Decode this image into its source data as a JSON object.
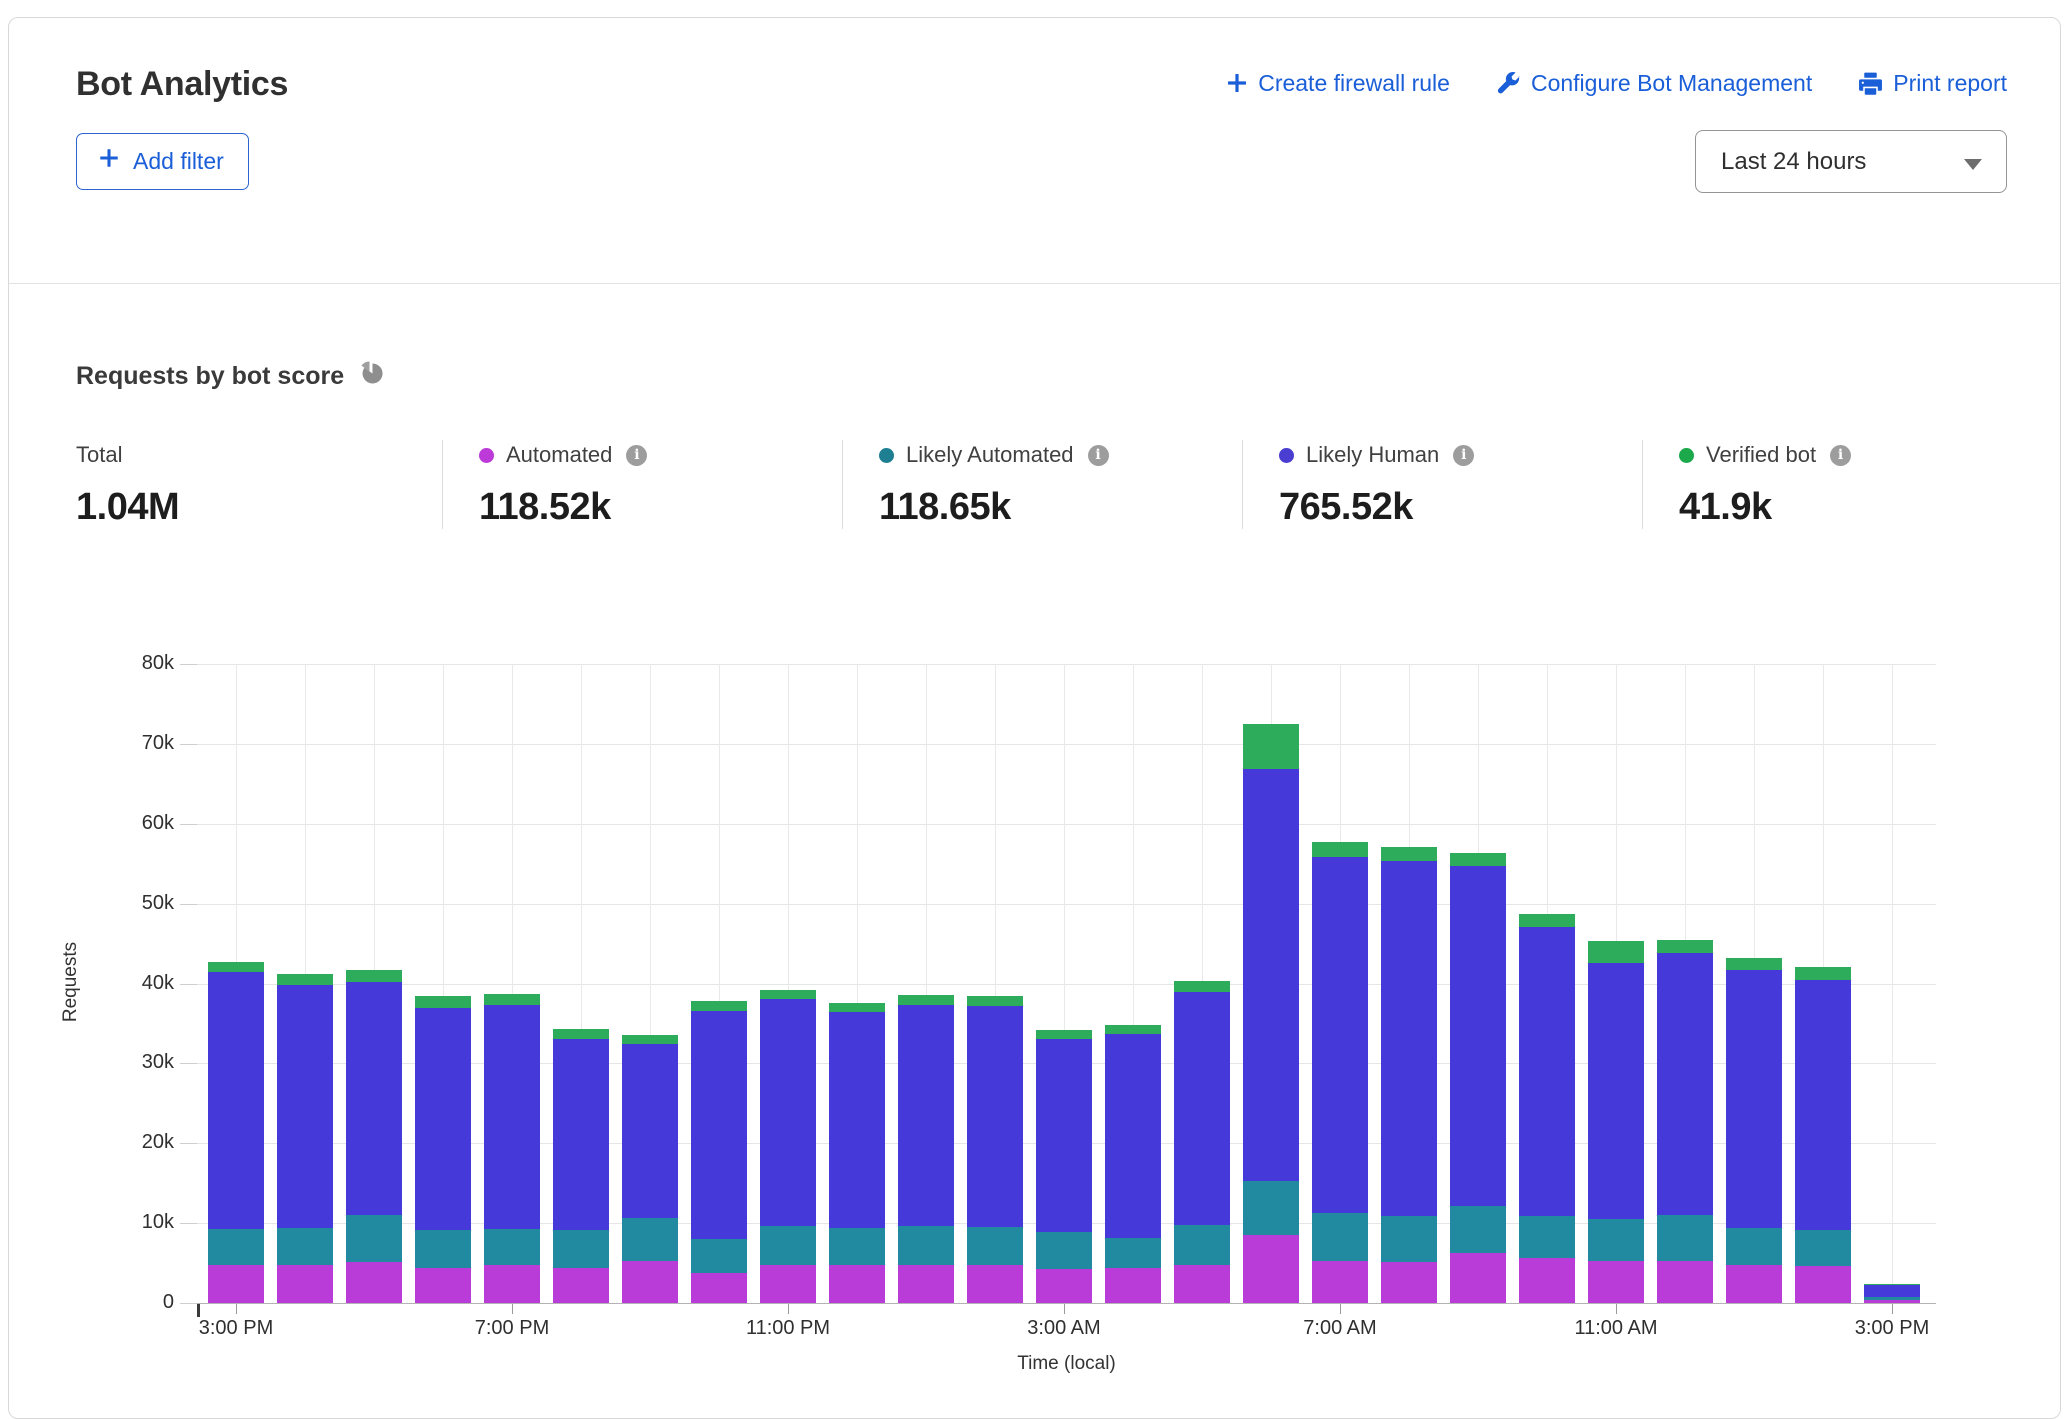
{
  "header": {
    "title": "Bot Analytics",
    "actions": [
      {
        "label": "Create firewall rule",
        "icon": "plus-icon"
      },
      {
        "label": "Configure Bot Management",
        "icon": "wrench-icon"
      },
      {
        "label": "Print report",
        "icon": "printer-icon"
      }
    ]
  },
  "filters": {
    "add_filter_label": "Add filter",
    "time_range_value": "Last 24 hours"
  },
  "section": {
    "title": "Requests by bot score",
    "icon": "pie-chart-icon"
  },
  "stats": {
    "total": {
      "label": "Total",
      "value": "1.04M"
    },
    "items": [
      {
        "label": "Automated",
        "value": "118.52k",
        "color": "#bc3ad8"
      },
      {
        "label": "Likely Automated",
        "value": "118.65k",
        "color": "#1e7f93"
      },
      {
        "label": "Likely Human",
        "value": "765.52k",
        "color": "#4a3ed2"
      },
      {
        "label": "Verified bot",
        "value": "41.9k",
        "color": "#1ba94c"
      }
    ]
  },
  "colors": {
    "link_blue": "#1a5ed8",
    "grid_line": "#e6e6e6",
    "axis_line": "#b3b3b3"
  },
  "chart_data": {
    "type": "bar",
    "stacked": true,
    "title": "Requests by bot score",
    "xlabel": "Time (local)",
    "ylabel": "Requests",
    "unit": "thousands of requests",
    "ylim": [
      0,
      80000
    ],
    "y_ticks": [
      "80k",
      "70k",
      "60k",
      "50k",
      "40k",
      "30k",
      "20k",
      "10k",
      "0"
    ],
    "x_tick_every": 4,
    "grid": true,
    "legend_position": "top-stats-row",
    "categories": [
      "3:00 PM",
      "4:00 PM",
      "5:00 PM",
      "6:00 PM",
      "7:00 PM",
      "8:00 PM",
      "9:00 PM",
      "10:00 PM",
      "11:00 PM",
      "12:00 AM",
      "1:00 AM",
      "2:00 AM",
      "3:00 AM",
      "4:00 AM",
      "5:00 AM",
      "6:00 AM",
      "7:00 AM",
      "8:00 AM",
      "9:00 AM",
      "10:00 AM",
      "11:00 AM",
      "12:00 PM",
      "1:00 PM",
      "2:00 PM",
      "3:00 PM"
    ],
    "series": [
      {
        "name": "Automated",
        "color": "#b93bd8",
        "values": [
          4.7,
          4.8,
          5.1,
          4.4,
          4.7,
          4.4,
          5.3,
          3.8,
          4.8,
          4.8,
          4.8,
          4.7,
          4.3,
          4.4,
          4.7,
          8.5,
          5.2,
          5.1,
          6.2,
          5.6,
          5.3,
          5.2,
          4.7,
          4.6,
          0.4
        ]
      },
      {
        "name": "Likely Automated",
        "color": "#2189a0",
        "values": [
          4.6,
          4.6,
          5.9,
          4.8,
          4.6,
          4.8,
          5.3,
          4.2,
          4.8,
          4.6,
          4.8,
          4.8,
          4.6,
          3.7,
          5.1,
          6.8,
          6.1,
          5.8,
          5.9,
          5.3,
          5.2,
          5.8,
          4.7,
          4.6,
          0.3
        ]
      },
      {
        "name": "Likely Human",
        "color": "#4639d9",
        "values": [
          32.2,
          30.4,
          29.2,
          27.7,
          28.0,
          23.9,
          21.8,
          28.5,
          28.5,
          27.0,
          27.7,
          27.7,
          24.1,
          25.6,
          29.2,
          51.6,
          44.6,
          44.5,
          42.6,
          36.2,
          32.1,
          32.8,
          32.3,
          31.2,
          1.6
        ]
      },
      {
        "name": "Verified bot",
        "color": "#2dad5c",
        "values": [
          1.2,
          1.4,
          1.5,
          1.5,
          1.4,
          1.2,
          1.1,
          1.3,
          1.1,
          1.2,
          1.3,
          1.3,
          1.2,
          1.1,
          1.3,
          5.6,
          1.8,
          1.7,
          1.6,
          1.6,
          2.7,
          1.7,
          1.5,
          1.7,
          0.1
        ]
      }
    ]
  }
}
